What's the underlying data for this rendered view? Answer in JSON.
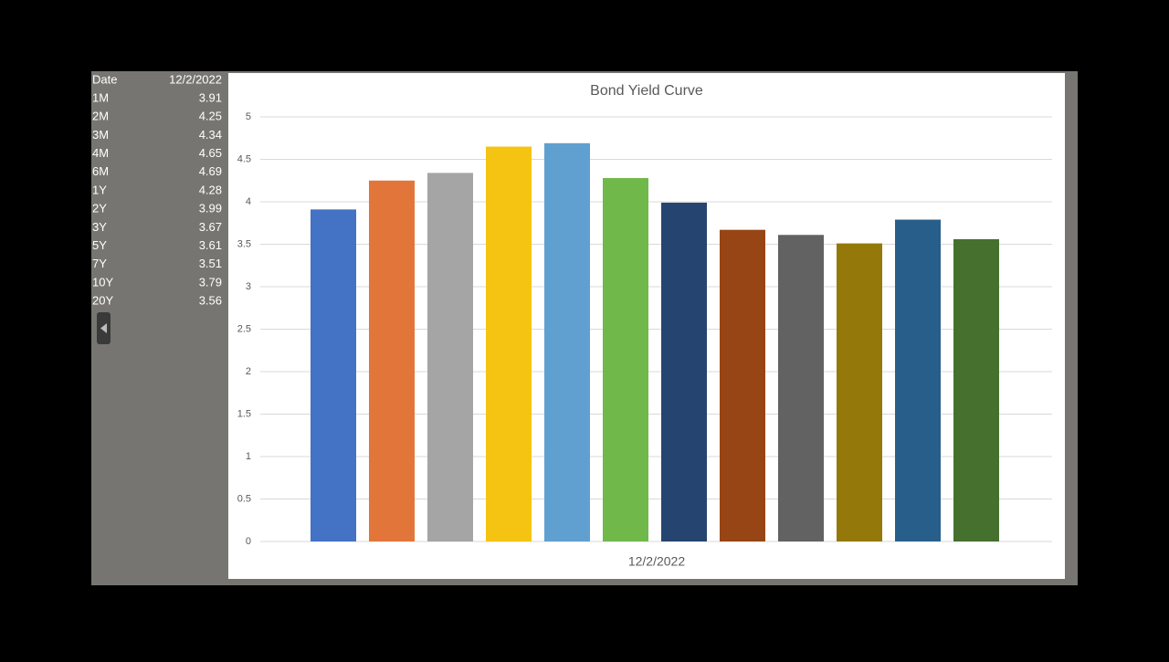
{
  "table": {
    "header": "Date"
  },
  "chart_data": {
    "type": "bar",
    "title": "Bond Yield Curve",
    "categories": [
      "12/2/2022"
    ],
    "series": [
      {
        "name": "1M",
        "color": "#4472c4",
        "values": [
          3.91
        ]
      },
      {
        "name": "2M",
        "color": "#e2763a",
        "values": [
          4.25
        ]
      },
      {
        "name": "3M",
        "color": "#a5a5a5",
        "values": [
          4.34
        ]
      },
      {
        "name": "4M",
        "color": "#f5c412",
        "values": [
          4.65
        ]
      },
      {
        "name": "6M",
        "color": "#5fa0d0",
        "values": [
          4.69
        ]
      },
      {
        "name": "1Y",
        "color": "#70b84a",
        "values": [
          4.28
        ]
      },
      {
        "name": "2Y",
        "color": "#264470",
        "values": [
          3.99
        ]
      },
      {
        "name": "3Y",
        "color": "#974514",
        "values": [
          3.67
        ]
      },
      {
        "name": "5Y",
        "color": "#626262",
        "values": [
          3.61
        ]
      },
      {
        "name": "7Y",
        "color": "#94780a",
        "values": [
          3.51
        ]
      },
      {
        "name": "10Y",
        "color": "#285f8a",
        "values": [
          3.79
        ]
      },
      {
        "name": "20Y",
        "color": "#45702e",
        "values": [
          3.56
        ]
      }
    ],
    "ylim": [
      0,
      5
    ],
    "yticks": [
      0,
      0.5,
      1,
      1.5,
      2,
      2.5,
      3,
      3.5,
      4,
      4.5,
      5
    ],
    "grid": true
  }
}
